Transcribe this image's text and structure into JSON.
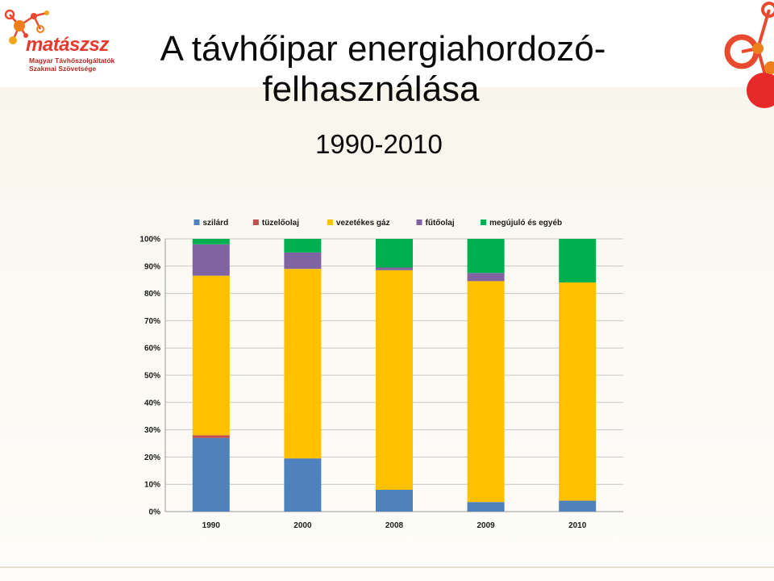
{
  "logo": {
    "name": "matászsz",
    "subtitle_line1": "Magyar Távhőszolgáltatók",
    "subtitle_line2": "Szakmai Szövetsége"
  },
  "slide": {
    "title_line1": "A távhőipar energiahordozó-",
    "title_line2": "felhasználása",
    "subtitle": "1990-2010"
  },
  "colors": {
    "brand": "#e63a2e"
  },
  "chart_data": {
    "type": "bar",
    "stacked": true,
    "percent": true,
    "categories": [
      "1990",
      "2000",
      "2008",
      "2009",
      "2010"
    ],
    "series": [
      {
        "name": "szilárd",
        "color": "#4f81bd",
        "values": [
          27,
          19.5,
          8,
          3.5,
          4
        ]
      },
      {
        "name": "tüzelőolaj",
        "color": "#c0504d",
        "values": [
          1,
          0,
          0,
          0,
          0
        ]
      },
      {
        "name": "vezetékes gáz",
        "color": "#ffc000",
        "values": [
          58.5,
          69.5,
          80.5,
          81,
          80
        ]
      },
      {
        "name": "fűtőolaj",
        "color": "#8064a2",
        "values": [
          11.5,
          6,
          1,
          3,
          0
        ]
      },
      {
        "name": "megújuló és egyéb",
        "color": "#00b050",
        "values": [
          2,
          5,
          10.5,
          12.5,
          16
        ]
      }
    ],
    "ylim": [
      0,
      100
    ],
    "yticks": [
      "0%",
      "10%",
      "20%",
      "30%",
      "40%",
      "50%",
      "60%",
      "70%",
      "80%",
      "90%",
      "100%"
    ],
    "grid": true,
    "legend_position": "top"
  }
}
